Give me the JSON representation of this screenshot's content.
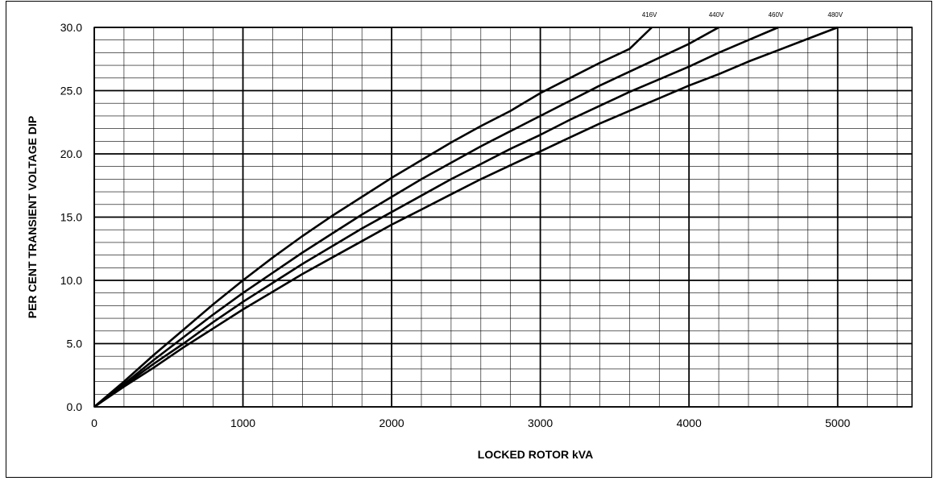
{
  "chart_data": {
    "type": "line",
    "title": "",
    "xlabel": "LOCKED ROTOR kVA",
    "ylabel": "PER CENT TRANSIENT VOLTAGE DIP",
    "xlim": [
      0,
      5500
    ],
    "ylim": [
      0,
      30
    ],
    "x_ticks": [
      0,
      1000,
      2000,
      3000,
      4000,
      5000
    ],
    "x_tick_labels": [
      "0",
      "1000",
      "2000",
      "3000",
      "4000",
      "5000"
    ],
    "y_ticks": [
      0,
      5,
      10,
      15,
      20,
      25,
      30
    ],
    "y_tick_labels": [
      "0.0",
      "5.0",
      "10.0",
      "15.0",
      "20.0",
      "25.0",
      "30.0"
    ],
    "x_minor_step": 200,
    "y_minor_step": 1,
    "grid": true,
    "series": [
      {
        "name": "416V",
        "x": [
          0,
          200,
          400,
          600,
          800,
          1000,
          1200,
          1400,
          1600,
          1800,
          2000,
          2200,
          2400,
          2600,
          2800,
          3000,
          3200,
          3400,
          3600,
          3750
        ],
        "y": [
          0,
          2.0,
          4.1,
          6.1,
          8.1,
          10.0,
          11.8,
          13.5,
          15.1,
          16.6,
          18.1,
          19.5,
          20.9,
          22.2,
          23.4,
          24.8,
          26.0,
          27.2,
          28.3,
          30.0
        ]
      },
      {
        "name": "440V",
        "x": [
          0,
          200,
          400,
          600,
          800,
          1000,
          1200,
          1400,
          1600,
          1800,
          2000,
          2200,
          2400,
          2600,
          2800,
          3000,
          3200,
          3400,
          3600,
          3800,
          4000,
          4200
        ],
        "y": [
          0,
          1.8,
          3.7,
          5.5,
          7.3,
          9.0,
          10.6,
          12.2,
          13.7,
          15.2,
          16.6,
          18.0,
          19.3,
          20.6,
          21.8,
          23.0,
          24.2,
          25.4,
          26.5,
          27.6,
          28.7,
          30.0
        ]
      },
      {
        "name": "460V",
        "x": [
          0,
          200,
          400,
          600,
          800,
          1000,
          1200,
          1400,
          1600,
          1800,
          2000,
          2200,
          2400,
          2600,
          2800,
          3000,
          3200,
          3400,
          3600,
          3800,
          4000,
          4200,
          4400,
          4600
        ],
        "y": [
          0,
          1.7,
          3.4,
          5.0,
          6.7,
          8.3,
          9.8,
          11.3,
          12.7,
          14.1,
          15.4,
          16.7,
          18.0,
          19.2,
          20.4,
          21.5,
          22.7,
          23.8,
          24.9,
          25.9,
          26.9,
          28.0,
          29.0,
          30.0
        ]
      },
      {
        "name": "480V",
        "x": [
          0,
          200,
          400,
          600,
          800,
          1000,
          1200,
          1400,
          1600,
          1800,
          2000,
          2200,
          2400,
          2600,
          2800,
          3000,
          3200,
          3400,
          3600,
          3800,
          4000,
          4200,
          4400,
          4600,
          4800,
          5000
        ],
        "y": [
          0,
          1.6,
          3.1,
          4.7,
          6.2,
          7.7,
          9.1,
          10.5,
          11.8,
          13.1,
          14.4,
          15.6,
          16.8,
          18.0,
          19.1,
          20.2,
          21.3,
          22.4,
          23.4,
          24.4,
          25.4,
          26.3,
          27.3,
          28.2,
          29.1,
          30.0
        ]
      }
    ]
  }
}
